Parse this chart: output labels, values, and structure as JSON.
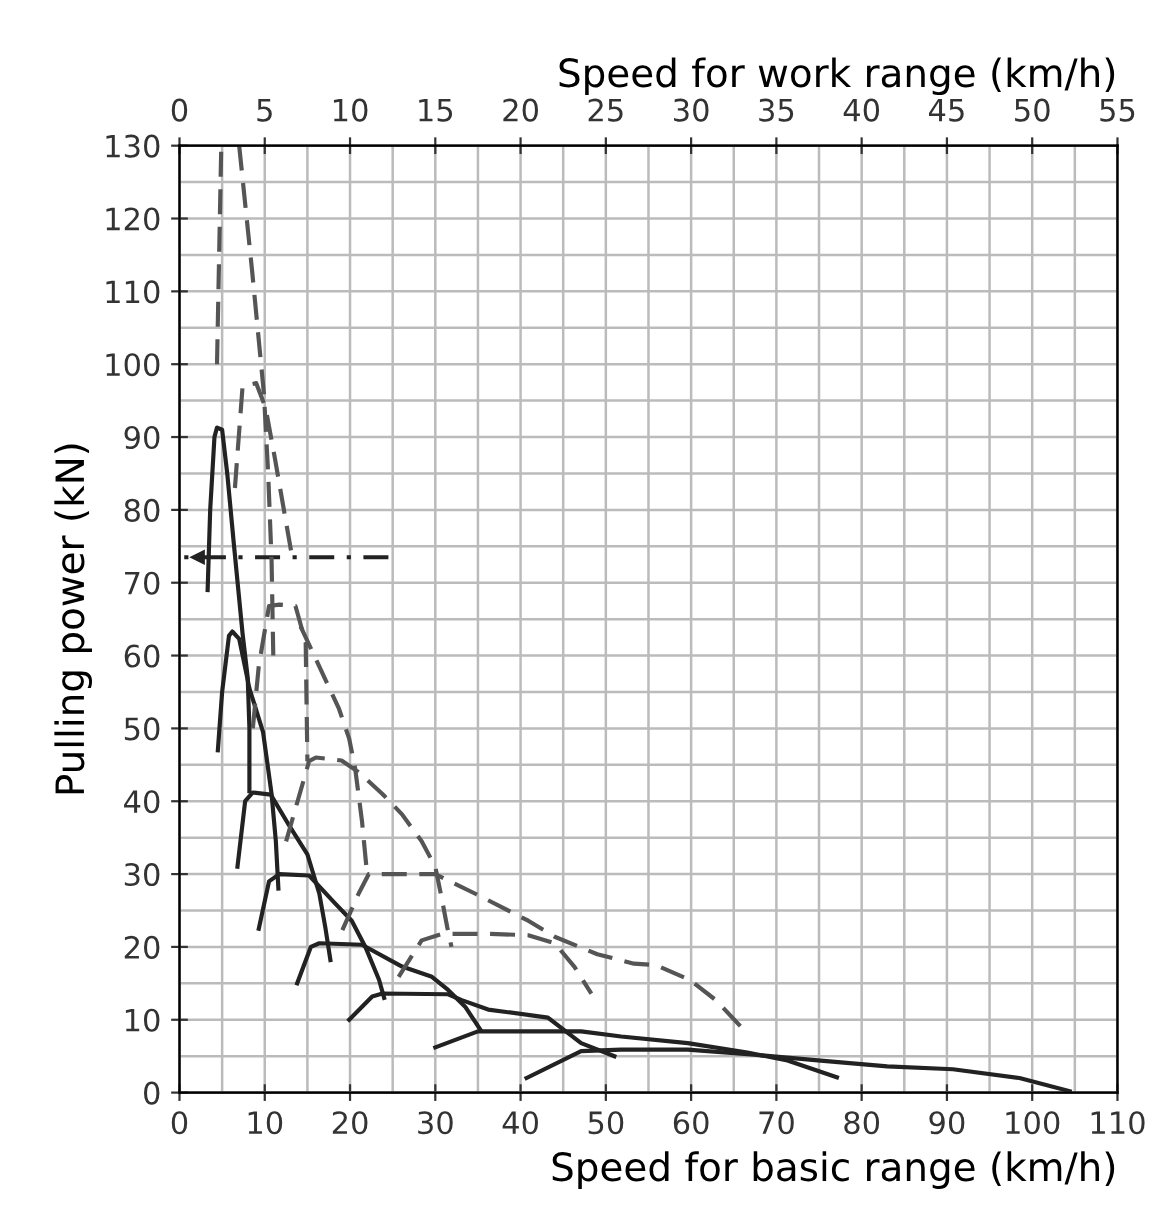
{
  "chart_data": {
    "type": "line",
    "xlabel": "Speed for basic range (km/h)",
    "x2label": "Speed for work range (km/h)",
    "ylabel": "Pulling power (kN)",
    "xlim": [
      0,
      110
    ],
    "xticks": [
      0,
      10,
      20,
      30,
      40,
      50,
      60,
      70,
      80,
      90,
      100,
      110
    ],
    "x2lim": [
      0,
      55
    ],
    "x2ticks": [
      0,
      5,
      10,
      15,
      20,
      25,
      30,
      35,
      40,
      45,
      50,
      55
    ],
    "ylim": [
      0,
      130
    ],
    "yticks": [
      0,
      10,
      20,
      30,
      40,
      50,
      60,
      70,
      80,
      90,
      100,
      110,
      120,
      130
    ],
    "grid": true,
    "marker": "none",
    "series": [
      {
        "color": "#222222",
        "line_style": "solid",
        "x": [
          3.3,
          3.6,
          4.1,
          4.4,
          5,
          5.6,
          6.4,
          7.4,
          8,
          8.2,
          8.2
        ],
        "values": [
          69,
          80,
          90,
          91.3,
          91,
          85,
          75,
          63,
          57,
          50,
          41.4
        ]
      },
      {
        "color": "#222222",
        "line_style": "solid",
        "x": [
          4.5,
          5,
          5.8,
          6.2,
          7,
          8.2,
          9.8,
          10.8,
          11.3,
          11.6
        ],
        "values": [
          47,
          55,
          62.7,
          63.3,
          62.3,
          55.5,
          49.5,
          41,
          34.5,
          28
        ]
      },
      {
        "color": "#222222",
        "line_style": "solid",
        "x": [
          6.8,
          7.7,
          8.6,
          10.7,
          13,
          15,
          16.4,
          17.1,
          17.7
        ],
        "values": [
          31,
          40,
          41.2,
          40.9,
          36.4,
          32.7,
          27.3,
          22.7,
          18.2
        ]
      },
      {
        "color": "#222222",
        "line_style": "solid",
        "x": [
          9.3,
          10.5,
          11.7,
          15.2,
          18.3,
          20.2,
          21.8,
          23.4,
          24
        ],
        "values": [
          22.5,
          29,
          30,
          29.8,
          25.9,
          23.6,
          20,
          15.5,
          13
        ]
      },
      {
        "color": "#222222",
        "line_style": "solid",
        "x": [
          13.8,
          15.4,
          16.4,
          21.4,
          26.1,
          29.6,
          31.5,
          33.5,
          35.3
        ],
        "values": [
          15,
          20,
          20.5,
          20.3,
          17.3,
          15.9,
          14.1,
          11.8,
          8.6
        ]
      },
      {
        "color": "#222222",
        "line_style": "solid",
        "x": [
          19.9,
          22.6,
          23.8,
          31.5,
          33.1,
          36.2,
          43.2,
          47.1,
          51
        ],
        "values": [
          10,
          13.2,
          13.6,
          13.5,
          12.7,
          11.4,
          10.3,
          6.8,
          5
        ]
      },
      {
        "color": "#222222",
        "line_style": "solid",
        "x": [
          30,
          35,
          47.1,
          51.8,
          59.6,
          66.6,
          71.3,
          77.1
        ],
        "values": [
          6.2,
          8.4,
          8.4,
          7.7,
          6.8,
          5.5,
          4.4,
          2.1
        ]
      },
      {
        "color": "#222222",
        "line_style": "solid",
        "x": [
          40.7,
          47.1,
          51.8,
          59.6,
          67.4,
          75.2,
          83,
          90.7,
          98.5,
          104.4
        ],
        "values": [
          2,
          5.7,
          5.9,
          5.9,
          5.2,
          4.4,
          3.6,
          3.2,
          2,
          0.2
        ]
      },
      {
        "color": "#555555",
        "line_style": "dashed",
        "axis": "x2",
        "x": [
          2.2,
          2.45
        ],
        "values": [
          100,
          130
        ]
      },
      {
        "color": "#555555",
        "line_style": "dashed",
        "axis": "x2",
        "x": [
          3.5,
          4.25,
          4.95,
          5.2,
          5.4,
          5.5
        ],
        "values": [
          130,
          113,
          96,
          85,
          73,
          60
        ]
      },
      {
        "color": "#555555",
        "line_style": "dashed",
        "axis": "x2",
        "x": [
          3.25,
          3.7,
          4.5,
          5.05,
          5.6,
          6.6
        ],
        "values": [
          83,
          97,
          97.4,
          94,
          87,
          73.6
        ]
      },
      {
        "color": "#555555",
        "line_style": "dashed",
        "axis": "x2",
        "x": [
          4.3,
          4.65,
          5.25,
          5.85,
          6.8,
          7.4,
          7.45,
          7.5
        ],
        "values": [
          50,
          58.6,
          66.8,
          67,
          66.8,
          61.8,
          53.6,
          45.5
        ]
      },
      {
        "color": "#555555",
        "line_style": "dashed",
        "axis": "x2",
        "x": [
          7.1,
          8,
          9.35,
          9.95,
          10.3,
          10.7,
          11
        ],
        "values": [
          64,
          59.5,
          52.7,
          48.6,
          44.5,
          37.3,
          30
        ]
      },
      {
        "color": "#555555",
        "line_style": "dashed",
        "axis": "x2",
        "x": [
          6.25,
          7.6,
          8,
          9.5,
          10.5,
          11.9,
          13.05,
          14.2,
          15,
          15.4,
          15.7,
          15.95
        ],
        "values": [
          34.5,
          45.5,
          46,
          45.6,
          44,
          41,
          38.2,
          34.5,
          31,
          26.4,
          22.7,
          20
        ]
      },
      {
        "color": "#555555",
        "line_style": "dashed",
        "axis": "x2",
        "x": [
          9.55,
          10.5,
          11.1,
          12.25,
          15,
          17.35,
          20.45,
          22,
          24.5,
          26.65,
          27.95,
          29.9,
          31.45,
          32.9
        ],
        "values": [
          22.3,
          27.3,
          30,
          30,
          30,
          27.3,
          23.6,
          21.4,
          19,
          17.7,
          17.5,
          15.5,
          12.7,
          9.1
        ]
      },
      {
        "color": "#555555",
        "line_style": "dashed",
        "axis": "x2",
        "x": [
          12.85,
          14.2,
          15.4,
          18.1,
          20.45,
          22,
          23.15,
          24.15
        ],
        "values": [
          15.9,
          20.9,
          21.8,
          21.8,
          21.6,
          20.5,
          17.3,
          13.6
        ]
      },
      {
        "color": "#222222",
        "line_style": "dashdot",
        "x": [
          24.5,
          0.5
        ],
        "values": [
          73.5,
          73.5
        ]
      }
    ]
  }
}
